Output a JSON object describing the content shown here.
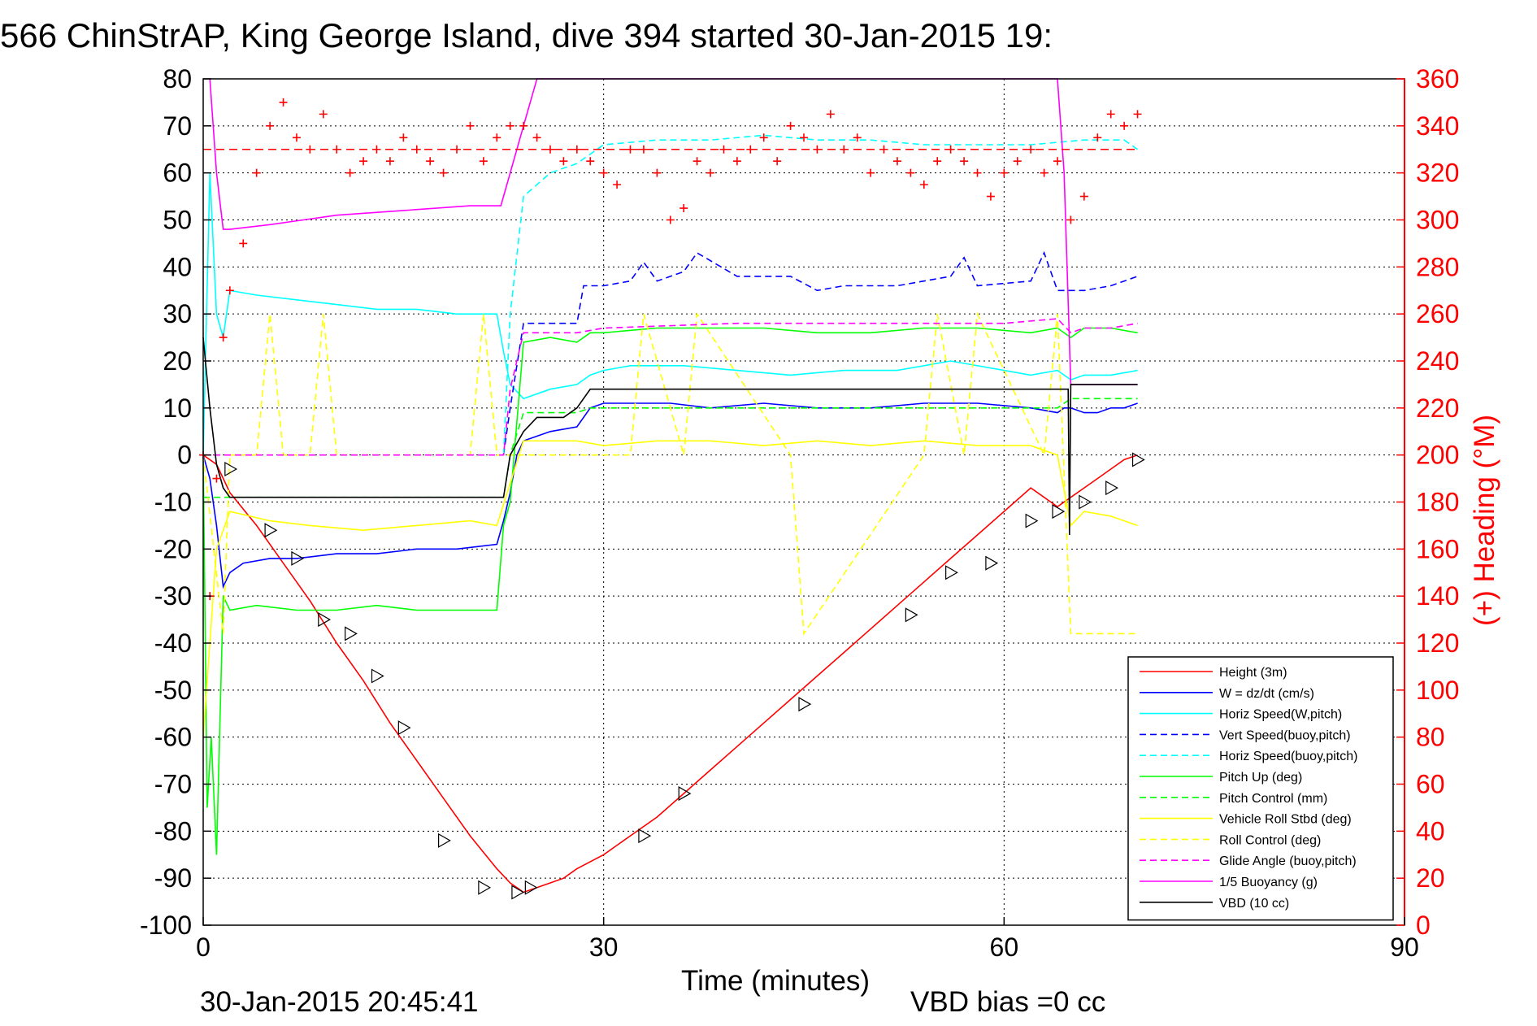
{
  "chart_data": {
    "type": "line",
    "title": "566 ChinStrAP, King George Island, dive 394 started 30-Jan-2015 19:",
    "xlabel": "Time (minutes)",
    "ylabel_right": "(+) Heading (°M)",
    "footer_left": "30-Jan-2015 20:45:41",
    "footer_right": "VBD bias =0 cc",
    "xlim": [
      0,
      90
    ],
    "ylim": [
      -100,
      80
    ],
    "ylim_right": [
      0,
      360
    ],
    "xticks": [
      "0",
      "30",
      "60",
      "90"
    ],
    "yticks": [
      "80",
      "70",
      "60",
      "50",
      "40",
      "30",
      "20",
      "10",
      "0",
      "-10",
      "-20",
      "-30",
      "-40",
      "-50",
      "-60",
      "-70",
      "-80",
      "-90",
      "-100"
    ],
    "yticks_right": [
      "360",
      "340",
      "320",
      "300",
      "280",
      "260",
      "240",
      "220",
      "200",
      "180",
      "160",
      "140",
      "120",
      "100",
      "80",
      "60",
      "40",
      "20",
      "0"
    ],
    "grid": true,
    "legend_position": "bottom-right",
    "series": [
      {
        "name": "Height (3m)",
        "color": "#ff0000",
        "style": "solid",
        "x": [
          0,
          1,
          2,
          4,
          6,
          8,
          10,
          12,
          14,
          16,
          18,
          20,
          22,
          23,
          24,
          25,
          26,
          27,
          28,
          30,
          32,
          34,
          36,
          38,
          40,
          42,
          44,
          46,
          48,
          50,
          52,
          54,
          56,
          58,
          60,
          62,
          64,
          65,
          66,
          67,
          68,
          69,
          70
        ],
        "y": [
          0,
          -2,
          -8,
          -15,
          -23,
          -31,
          -40,
          -48,
          -57,
          -65,
          -73,
          -81,
          -88,
          -91,
          -93,
          -92,
          -91,
          -90,
          -88,
          -85,
          -81,
          -77,
          -72,
          -67,
          -62,
          -57,
          -52,
          -47,
          -42,
          -37,
          -32,
          -27,
          -22,
          -17,
          -12,
          -7,
          -11,
          -9,
          -7,
          -5,
          -3,
          -1,
          0
        ]
      },
      {
        "name": "W = dz/dt (cm/s)",
        "color": "#0000ff",
        "style": "solid",
        "x": [
          0,
          0.5,
          1,
          1.5,
          2,
          3,
          5,
          7,
          10,
          13,
          16,
          19,
          22,
          22.5,
          23,
          23.5,
          24,
          26,
          28,
          29,
          30,
          32,
          35,
          38,
          42,
          46,
          50,
          54,
          58,
          62,
          64,
          64.5,
          65,
          66,
          67,
          68,
          69,
          70
        ],
        "y": [
          0,
          -5,
          -15,
          -28,
          -25,
          -23,
          -22,
          -22,
          -21,
          -21,
          -20,
          -20,
          -19,
          -14,
          -8,
          0,
          3,
          5,
          6,
          10,
          11,
          11,
          11,
          10,
          11,
          10,
          10,
          11,
          11,
          10,
          9,
          10,
          10,
          9,
          9,
          10,
          10,
          11
        ]
      },
      {
        "name": "Horiz Speed(W,pitch)",
        "color": "#00ffff",
        "style": "solid",
        "x": [
          0,
          0.5,
          1,
          1.5,
          2,
          4,
          7,
          10,
          13,
          16,
          19,
          22,
          22.5,
          23,
          24,
          26,
          28,
          29,
          30,
          32,
          36,
          40,
          44,
          48,
          52,
          56,
          60,
          62,
          64,
          65,
          66,
          68,
          70
        ],
        "y": [
          0,
          60,
          30,
          25,
          35,
          34,
          33,
          32,
          31,
          31,
          30,
          30,
          22,
          15,
          12,
          14,
          15,
          17,
          18,
          19,
          19,
          18,
          17,
          18,
          18,
          20,
          18,
          17,
          18,
          16,
          17,
          17,
          18
        ]
      },
      {
        "name": "Vert Speed(buoy,pitch)",
        "color": "#0000ff",
        "style": "dashed",
        "x": [
          22.5,
          23,
          24,
          26,
          28,
          28.5,
          30,
          32,
          33,
          34,
          36,
          37,
          40,
          44,
          46,
          48,
          52,
          54,
          56,
          57,
          58,
          62,
          63,
          64,
          66,
          68,
          70
        ],
        "y": [
          0,
          10,
          28,
          28,
          28,
          36,
          36,
          37,
          41,
          37,
          39,
          43,
          38,
          38,
          35,
          36,
          36,
          37,
          38,
          42,
          36,
          37,
          43,
          35,
          35,
          36,
          38
        ]
      },
      {
        "name": "Horiz Speed(buoy,pitch)",
        "color": "#00ffff",
        "style": "dashed",
        "x": [
          22.5,
          23,
          24,
          26,
          27,
          28,
          30,
          34,
          38,
          42,
          46,
          50,
          54,
          58,
          62,
          66,
          68,
          69,
          70
        ],
        "y": [
          0,
          30,
          55,
          60,
          61,
          62,
          66,
          67,
          67,
          68,
          67,
          67,
          66,
          66,
          66,
          67,
          67,
          67,
          65
        ]
      },
      {
        "name": "Pitch Up (deg)",
        "color": "#00ff00",
        "style": "solid",
        "x": [
          0,
          0.3,
          0.6,
          1,
          1.5,
          2,
          4,
          7,
          10,
          13,
          16,
          19,
          22,
          22.5,
          23,
          24,
          26,
          28,
          29,
          30,
          34,
          38,
          42,
          46,
          50,
          54,
          58,
          62,
          64,
          65,
          66,
          68,
          70
        ],
        "y": [
          0,
          -75,
          -60,
          -85,
          -30,
          -33,
          -32,
          -33,
          -33,
          -32,
          -33,
          -33,
          -33,
          -15,
          -10,
          24,
          25,
          24,
          26,
          26,
          27,
          27,
          27,
          26,
          26,
          27,
          27,
          26,
          27,
          25,
          27,
          27,
          26
        ]
      },
      {
        "name": "Pitch Control (mm)",
        "color": "#00ff00",
        "style": "dashed",
        "x": [
          0,
          22.5,
          23,
          24,
          28,
          29,
          60,
          64,
          65,
          70
        ],
        "y": [
          -9,
          -9,
          0,
          9,
          9,
          10,
          10,
          10,
          12,
          12
        ]
      },
      {
        "name": "Vehicle Roll Stbd (deg)",
        "color": "#ffff00",
        "style": "solid",
        "x": [
          0,
          1,
          2,
          5,
          8,
          12,
          16,
          20,
          22,
          24,
          28,
          30,
          34,
          38,
          42,
          46,
          50,
          54,
          58,
          62,
          64,
          65,
          66,
          68,
          70
        ],
        "y": [
          -60,
          -20,
          -12,
          -14,
          -15,
          -16,
          -15,
          -14,
          -15,
          3,
          3,
          2,
          3,
          3,
          2,
          3,
          2,
          3,
          2,
          2,
          0,
          -15,
          -12,
          -13,
          -15
        ]
      },
      {
        "name": "Roll Control (deg)",
        "color": "#ffff00",
        "style": "dashed",
        "x": [
          0,
          1.5,
          2,
          4,
          5,
          6,
          8,
          9,
          10,
          20,
          21,
          22,
          23,
          24,
          32,
          33,
          36,
          37,
          44,
          45,
          54,
          55,
          57,
          58,
          63,
          64,
          65,
          70
        ],
        "y": [
          0,
          -38,
          0,
          0,
          30,
          0,
          0,
          30,
          0,
          0,
          30,
          0,
          0,
          0,
          0,
          30,
          0,
          30,
          0,
          -38,
          0,
          30,
          0,
          30,
          0,
          30,
          -38,
          -38
        ]
      },
      {
        "name": "Glide Angle (buoy,pitch)",
        "color": "#ff00ff",
        "style": "dashed",
        "x": [
          0,
          22.5,
          23,
          24,
          28,
          30,
          40,
          50,
          60,
          64,
          65,
          66,
          68,
          70
        ],
        "y": [
          0,
          0,
          14,
          26,
          26,
          27,
          28,
          28,
          28,
          29,
          26,
          27,
          27,
          28
        ]
      },
      {
        "name": "1/5 Buoyancy (g)",
        "color": "#ff00ff",
        "style": "solid",
        "x": [
          0.5,
          1,
          1.5,
          2,
          5,
          10,
          15,
          20,
          22.3,
          22.5,
          24,
          25,
          64,
          64.5,
          65,
          66,
          70
        ],
        "y": [
          80,
          60,
          48,
          48,
          49,
          51,
          52,
          53,
          53,
          55,
          70,
          80,
          80,
          60,
          15,
          15,
          15
        ]
      },
      {
        "name": "VBD (10 cc)",
        "color": "#000000",
        "style": "solid",
        "x": [
          0,
          0.5,
          1,
          1.5,
          2,
          10,
          22.5,
          23,
          24,
          25,
          27,
          28,
          29,
          30,
          40,
          50,
          60,
          64.8,
          64.9,
          65,
          70
        ],
        "y": [
          25,
          10,
          -2,
          -7,
          -9,
          -9,
          -9,
          0,
          5,
          8,
          8,
          10,
          14,
          14,
          14,
          14,
          14,
          14,
          -17,
          15,
          15
        ]
      }
    ],
    "heading_series": {
      "name": "(+) Heading",
      "color": "#ff0000",
      "x": [
        0,
        0.5,
        1,
        1.5,
        2,
        3,
        4,
        5,
        6,
        7,
        8,
        9,
        10,
        11,
        12,
        13,
        14,
        15,
        16,
        17,
        18,
        19,
        20,
        21,
        22,
        23,
        24,
        25,
        26,
        27,
        28,
        29,
        30,
        31,
        32,
        33,
        34,
        35,
        36,
        37,
        38,
        39,
        40,
        41,
        42,
        43,
        44,
        45,
        46,
        47,
        48,
        49,
        50,
        51,
        52,
        53,
        54,
        55,
        56,
        57,
        58,
        59,
        60,
        61,
        62,
        63,
        64,
        65,
        66,
        67,
        68,
        69,
        70
      ],
      "y": [
        200,
        140,
        190,
        250,
        270,
        290,
        320,
        340,
        350,
        335,
        330,
        345,
        330,
        320,
        325,
        330,
        325,
        335,
        330,
        325,
        320,
        330,
        340,
        325,
        335,
        340,
        340,
        335,
        330,
        325,
        330,
        325,
        320,
        315,
        330,
        330,
        320,
        300,
        305,
        325,
        320,
        330,
        325,
        330,
        335,
        325,
        340,
        335,
        330,
        345,
        330,
        335,
        320,
        330,
        325,
        320,
        315,
        325,
        330,
        325,
        320,
        310,
        320,
        325,
        330,
        320,
        325,
        300,
        310,
        335,
        345,
        340,
        345
      ]
    },
    "heading_reference": 330,
    "depth_markers": {
      "name": "dive markers",
      "x": [
        2,
        5,
        7,
        9,
        11,
        13,
        15,
        18,
        21,
        23.5,
        24.5,
        33,
        36,
        45,
        53,
        56,
        59,
        62,
        64,
        66,
        68,
        70
      ],
      "y": [
        -3,
        -16,
        -22,
        -35,
        -38,
        -47,
        -58,
        -82,
        -92,
        -93,
        -92,
        -81,
        -72,
        -53,
        -34,
        -25,
        -23,
        -14,
        -12,
        -10,
        -7,
        -1
      ]
    }
  }
}
